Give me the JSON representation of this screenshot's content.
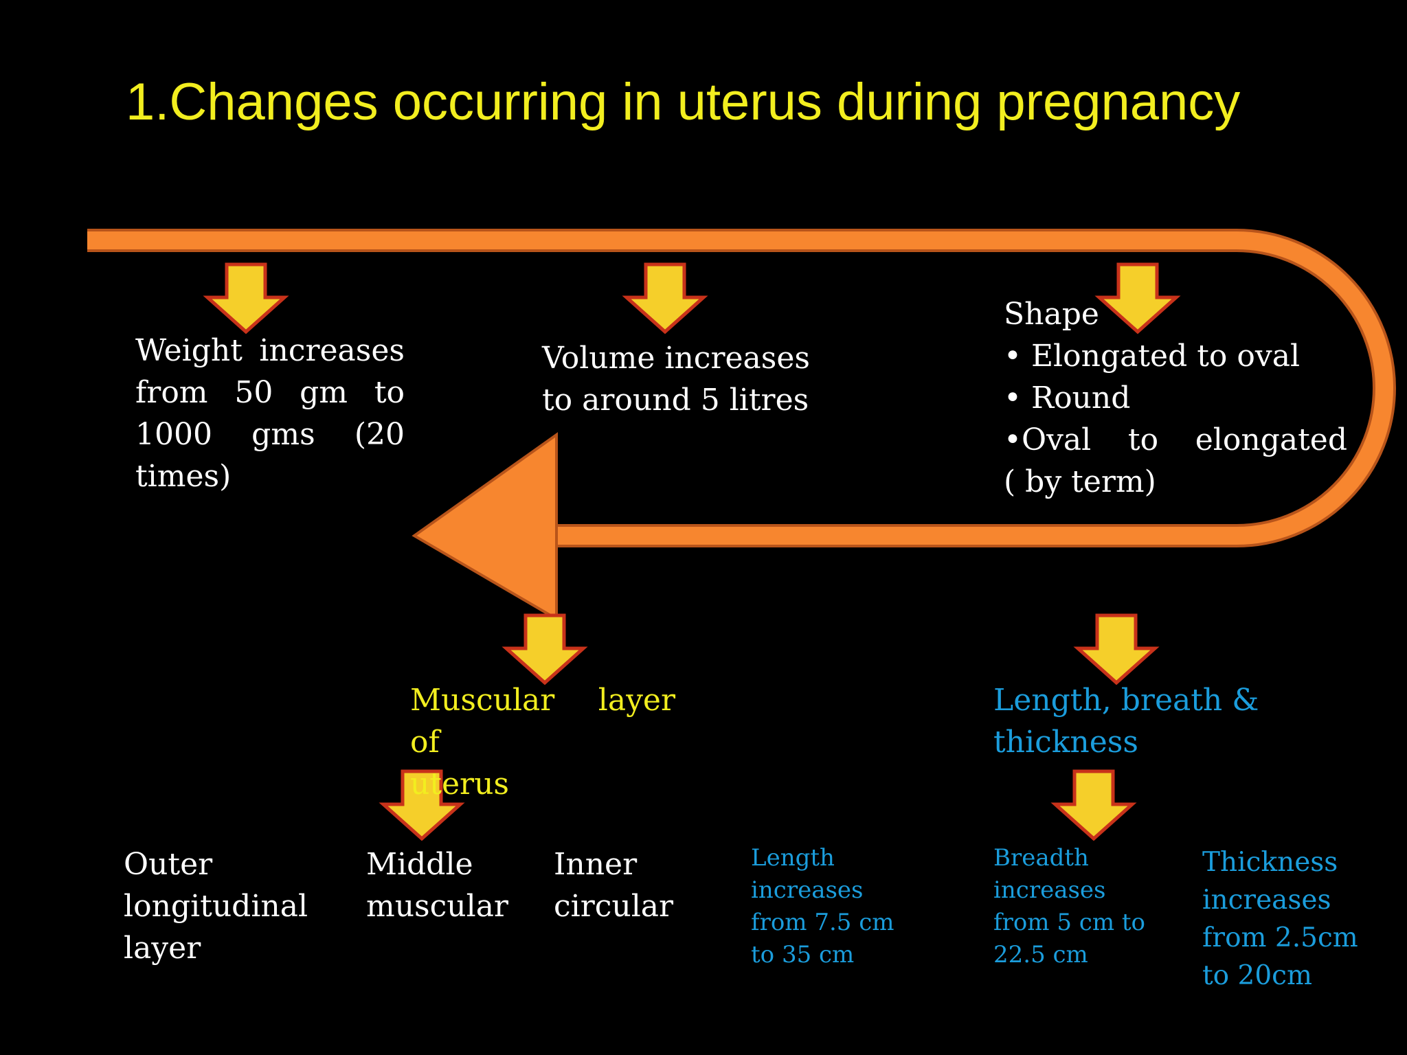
{
  "title": "1.Changes occurring in uterus during pregnancy",
  "weight": {
    "lines": [
      "Weight increases",
      "from 50 gm to",
      "1000 gms (20",
      "times)"
    ]
  },
  "volume": {
    "lines": [
      "Volume increases",
      "to around 5 litres"
    ]
  },
  "shape": {
    "heading": "Shape",
    "items": [
      "• Elongated to oval",
      "• Round",
      "•Oval to elongated"
    ],
    "note": "( by term)"
  },
  "muscular": {
    "lines": [
      "Muscular layer of",
      "uterus"
    ]
  },
  "dimensions": {
    "lines": [
      "Length, breath &",
      "thickness"
    ]
  },
  "layers": [
    {
      "lines": [
        "Outer",
        "longitudinal",
        "layer"
      ]
    },
    {
      "lines": [
        "Middle",
        "muscular"
      ]
    },
    {
      "lines": [
        "Inner",
        "circular"
      ]
    }
  ],
  "dimension_changes": [
    {
      "lines": [
        "Length",
        "increases",
        "from 7.5 cm",
        "to 35 cm"
      ]
    },
    {
      "lines": [
        "Breadth",
        "increases",
        "from 5 cm to",
        "22.5 cm"
      ]
    },
    {
      "lines": [
        "Thickness",
        "increases",
        "from 2.5cm",
        "to 20cm"
      ]
    }
  ]
}
